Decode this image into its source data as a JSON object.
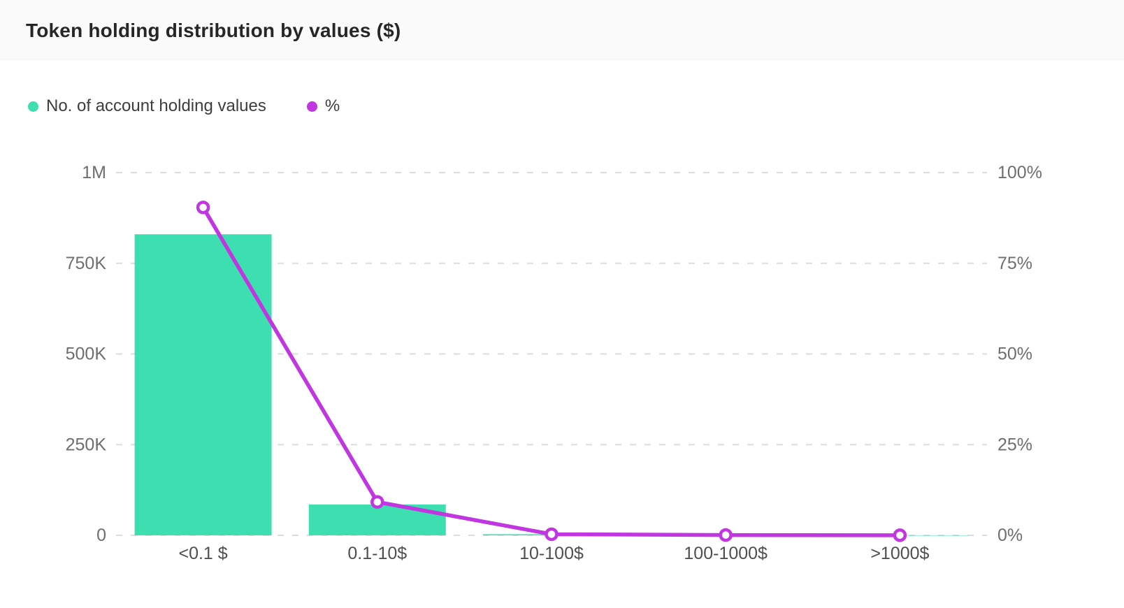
{
  "header": {
    "title": "Token holding distribution by values ($)"
  },
  "legend": {
    "items": [
      {
        "label": "No. of account holding values",
        "color": "#3ddfb0"
      },
      {
        "label": "%",
        "color": "#c136e0"
      }
    ]
  },
  "colors": {
    "bar": "#3ddfb0",
    "line": "#c136e0",
    "marker_fill": "#ffffff",
    "gridline": "#dcdcdc",
    "header_background": "#fafafa",
    "title_text": "#262626",
    "axis_tick_text": "#6e6e6e",
    "category_text": "#4f4f4f"
  },
  "chart_data": {
    "type": "bar",
    "subtype": "combo-bar-line-dual-axis",
    "title": "Token holding distribution by values ($)",
    "categories": [
      "<0.1 $",
      "0.1-10$",
      "10-100$",
      "100-1000$",
      ">1000$"
    ],
    "series": [
      {
        "name": "No. of account holding values",
        "type": "bar",
        "axis": "left",
        "color": "#3ddfb0",
        "values": [
          830000,
          85000,
          3000,
          500,
          100
        ]
      },
      {
        "name": "%",
        "type": "line",
        "axis": "right",
        "color": "#c136e0",
        "values": [
          90.4,
          9.2,
          0.3,
          0.07,
          0.03
        ]
      }
    ],
    "left_axis": {
      "label": "",
      "min": 0,
      "max": 1000000,
      "tick_labels": [
        "0",
        "250K",
        "500K",
        "750K",
        "1M"
      ]
    },
    "right_axis": {
      "label": "",
      "min": 0,
      "max": 100,
      "tick_labels": [
        "0%",
        "25%",
        "50%",
        "75%",
        "100%"
      ]
    },
    "grid": {
      "horizontal": true,
      "style": "dashed"
    },
    "legend_position": "top-left"
  }
}
